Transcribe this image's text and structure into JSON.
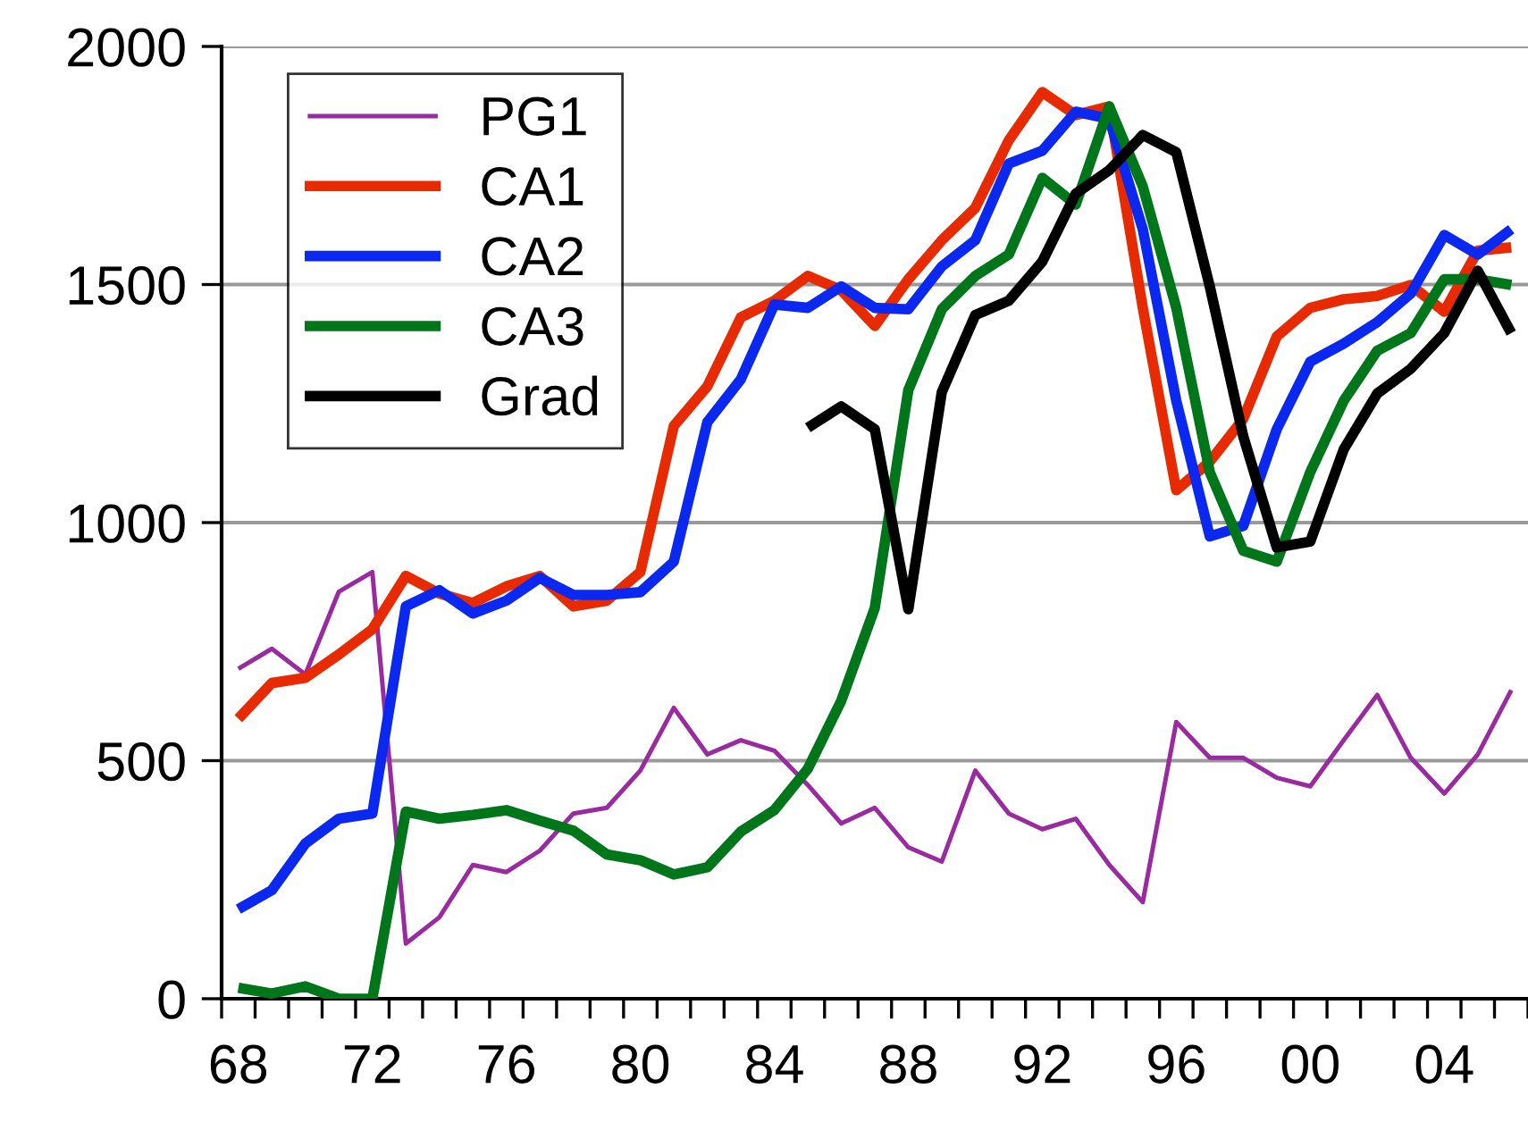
{
  "chart_data": {
    "type": "line",
    "categories": [
      "68",
      null,
      null,
      null,
      "72",
      null,
      null,
      null,
      "76",
      null,
      null,
      null,
      "80",
      null,
      null,
      null,
      "84",
      null,
      null,
      null,
      "88",
      null,
      null,
      null,
      "92",
      null,
      null,
      null,
      "96",
      null,
      null,
      null,
      "00",
      null,
      null,
      null,
      "04",
      null,
      null
    ],
    "series": [
      {
        "name": "PG1",
        "color": "#9a2aa0",
        "values": [
          693,
          735,
          681,
          855,
          896,
          116,
          171,
          281,
          266,
          311,
          389,
          401,
          479,
          611,
          513,
          543,
          521,
          449,
          368,
          401,
          318,
          288,
          479,
          389,
          356,
          378,
          281,
          203,
          581,
          506,
          506,
          464,
          446,
          543,
          638,
          506,
          431,
          513,
          648
        ]
      },
      {
        "name": "CA1",
        "color": "#e82a00",
        "values": [
          588,
          663,
          674,
          723,
          776,
          888,
          851,
          831,
          866,
          888,
          824,
          836,
          896,
          1203,
          1286,
          1431,
          1466,
          1518,
          1488,
          1413,
          1511,
          1593,
          1661,
          1803,
          1904,
          1856,
          1874,
          1451,
          1068,
          1128,
          1218,
          1391,
          1451,
          1469,
          1476,
          1499,
          1443,
          1571,
          1578
        ]
      },
      {
        "name": "CA2",
        "color": "#0a28f0",
        "values": [
          188,
          228,
          326,
          378,
          389,
          824,
          858,
          809,
          836,
          884,
          848,
          848,
          854,
          918,
          1211,
          1301,
          1458,
          1451,
          1496,
          1451,
          1448,
          1538,
          1593,
          1754,
          1781,
          1863,
          1848,
          1616,
          1256,
          971,
          993,
          1196,
          1338,
          1376,
          1421,
          1481,
          1604,
          1563,
          1616
        ]
      },
      {
        "name": "CA3",
        "color": "#00761a",
        "values": [
          23,
          11,
          26,
          0,
          0,
          393,
          378,
          386,
          396,
          374,
          353,
          303,
          291,
          261,
          276,
          351,
          396,
          483,
          626,
          821,
          1278,
          1448,
          1518,
          1563,
          1724,
          1668,
          1874,
          1706,
          1451,
          1106,
          941,
          918,
          1106,
          1256,
          1361,
          1398,
          1511,
          1511,
          1499
        ]
      },
      {
        "name": "Grad",
        "color": "#000000",
        "values": [
          null,
          null,
          null,
          null,
          null,
          null,
          null,
          null,
          null,
          null,
          null,
          null,
          null,
          null,
          null,
          null,
          null,
          1199,
          1244,
          1196,
          818,
          1274,
          1436,
          1466,
          1548,
          1691,
          1740,
          1814,
          1778,
          1496,
          1181,
          948,
          960,
          1154,
          1271,
          1323,
          1398,
          1529,
          1398
        ]
      }
    ],
    "ylim": [
      0,
      2000
    ],
    "yticks": [
      0,
      500,
      1000,
      1500,
      2000
    ],
    "grid": "y",
    "legend": "top left",
    "marker": "none",
    "line_style": "solid"
  }
}
